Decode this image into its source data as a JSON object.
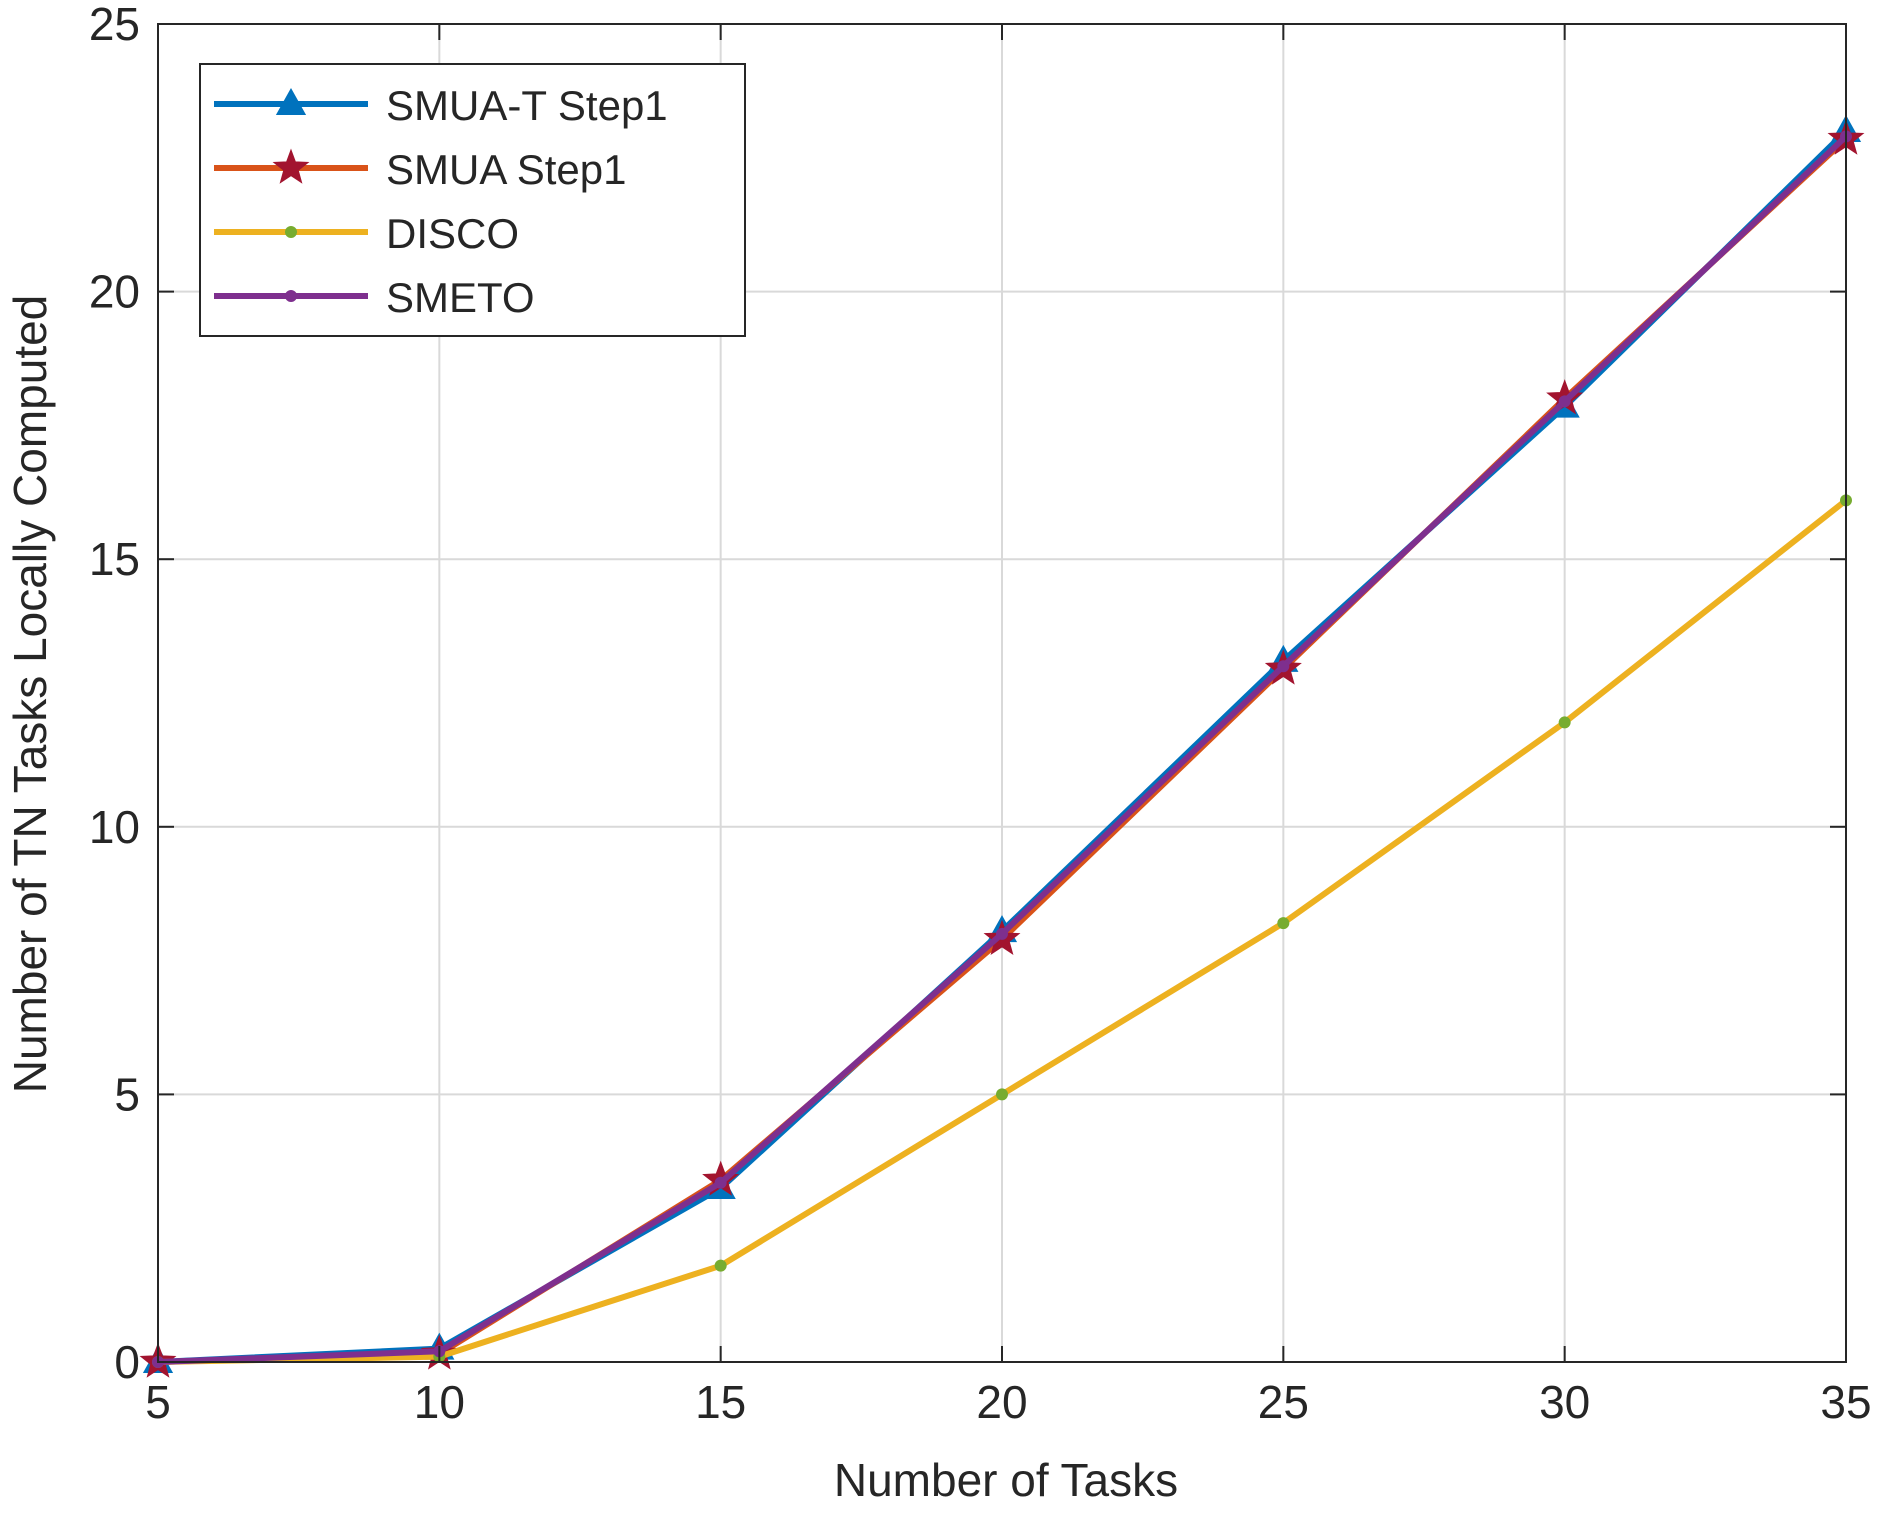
{
  "chart_data": {
    "type": "line",
    "title": "",
    "xlabel": "Number of Tasks",
    "ylabel": "Number of TN Tasks Locally Computed",
    "xlim": [
      5,
      35
    ],
    "ylim": [
      0,
      25
    ],
    "xticks": [
      5,
      10,
      15,
      20,
      25,
      30,
      35
    ],
    "yticks": [
      0,
      5,
      10,
      15,
      20,
      25
    ],
    "grid": true,
    "legend_position": "top-left",
    "x": [
      5,
      10,
      15,
      20,
      25,
      30,
      35
    ],
    "series": [
      {
        "name": "SMUA-T Step1",
        "color": "#0072BD",
        "marker": "triangle",
        "values": [
          0,
          0.25,
          3.25,
          8.05,
          13.1,
          17.85,
          23.0
        ]
      },
      {
        "name": "SMUA Step1",
        "color": "#D95319",
        "marker": "star",
        "values": [
          0,
          0.15,
          3.4,
          7.9,
          12.95,
          18.0,
          22.85
        ]
      },
      {
        "name": "DISCO",
        "color": "#EDB120",
        "marker": "dot",
        "values": [
          0,
          0.1,
          1.8,
          5.0,
          8.2,
          11.95,
          16.1
        ]
      },
      {
        "name": "SMETO",
        "color": "#7E2F8E",
        "marker": "dot",
        "values": [
          0,
          0.2,
          3.35,
          8.0,
          13.0,
          17.95,
          22.9
        ]
      }
    ],
    "marker_colors": {
      "star": "#A2142F",
      "dot_disco": "#77AC30",
      "dot_smeto": "#7E2F8E"
    }
  }
}
